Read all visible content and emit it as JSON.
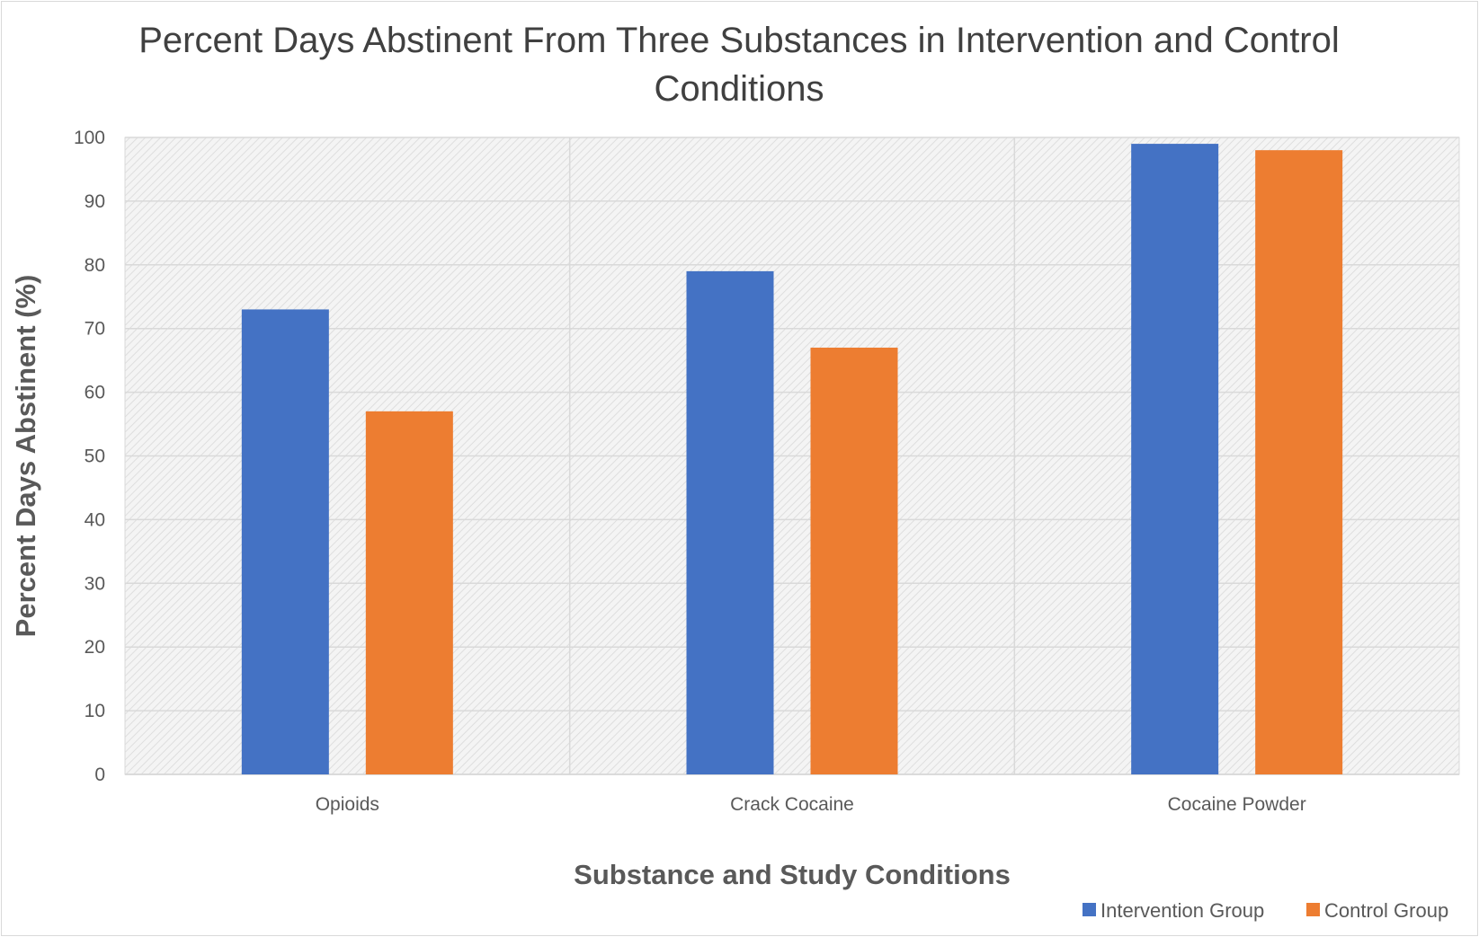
{
  "chart_data": {
    "type": "bar",
    "title_lines": [
      "Percent Days Abstinent From Three Substances in Intervention and Control",
      "Conditions"
    ],
    "xlabel": "Substance and Study Conditions",
    "ylabel": "Percent Days Abstinent (%)",
    "categories": [
      "Opioids",
      "Crack Cocaine",
      "Cocaine Powder"
    ],
    "series": [
      {
        "name": "Intervention Group",
        "color": "#4472c4",
        "values": [
          73,
          79,
          99
        ]
      },
      {
        "name": "Control Group",
        "color": "#ed7d31",
        "values": [
          57,
          67,
          98
        ]
      }
    ],
    "ylim": [
      0,
      100
    ],
    "yticks": [
      0,
      10,
      20,
      30,
      40,
      50,
      60,
      70,
      80,
      90,
      100
    ],
    "grid": true,
    "plot_background": "hatched-light-gray",
    "legend_position": "bottom-right"
  }
}
